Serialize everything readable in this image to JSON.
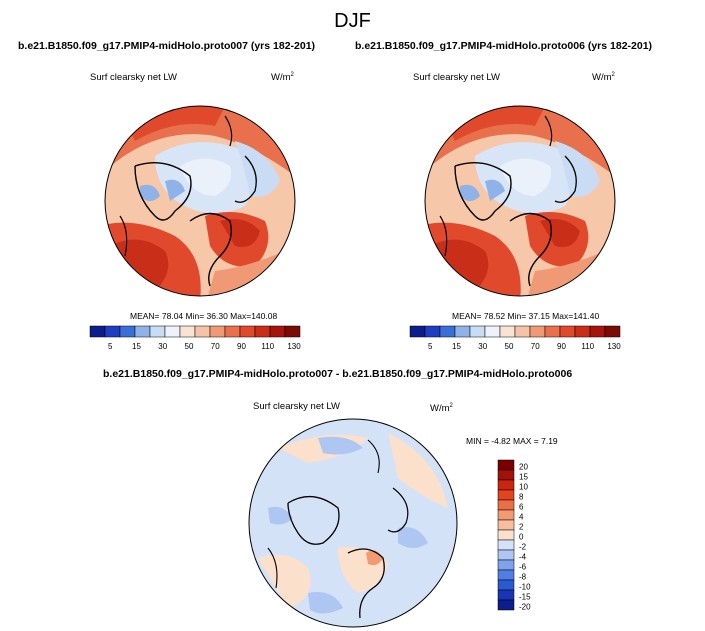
{
  "title": "DJF",
  "colors": {
    "lw": [
      "#0b1e8c",
      "#1d3fc4",
      "#3a6fd8",
      "#8fb3e8",
      "#c9dcf3",
      "#eef3fb",
      "#fbe3d3",
      "#f6c3a6",
      "#f09a75",
      "#e8704c",
      "#e0492b",
      "#c92e19",
      "#a8140c",
      "#7c0a05"
    ],
    "diff": [
      "#0b1e8c",
      "#1735b5",
      "#2a5ad2",
      "#4f7fe0",
      "#7fa3ea",
      "#aec6f2",
      "#d4e2f8",
      "#fbe0cc",
      "#f7bf9f",
      "#f29a72",
      "#eb6f45",
      "#e3441f",
      "#c9250f",
      "#a1120a",
      "#7a0000"
    ]
  },
  "panels": [
    {
      "run_title": "b.e21.B1850.f09_g17.PMIP4-midHolo.proto007 (yrs 182-201)",
      "var_label": "Surf clearsky net LW",
      "units": "W/m",
      "units_exp": "2",
      "stats": "MEAN= 78.04  Min= 36.30  Max=140.08",
      "colorbar_labels": [
        "5",
        "15",
        "30",
        "50",
        "70",
        "90",
        "110",
        "130"
      ]
    },
    {
      "run_title": "b.e21.B1850.f09_g17.PMIP4-midHolo.proto006 (yrs 182-201)",
      "var_label": "Surf clearsky net LW",
      "units": "W/m",
      "units_exp": "2",
      "stats": "MEAN= 78.52  Min= 37.15  Max=141.40",
      "colorbar_labels": [
        "5",
        "15",
        "30",
        "50",
        "70",
        "90",
        "110",
        "130"
      ]
    }
  ],
  "diff_panel": {
    "title": "b.e21.B1850.f09_g17.PMIP4-midHolo.proto007 - b.e21.B1850.f09_g17.PMIP4-midHolo.proto006",
    "var_label": "Surf clearsky net LW",
    "units": "W/m",
    "units_exp": "2",
    "stats": "MIN =  -4.82 MAX =   7.19",
    "colorbar_labels": [
      "20",
      "15",
      "10",
      "8",
      "6",
      "4",
      "2",
      "0",
      "-2",
      "-4",
      "-6",
      "-8",
      "-10",
      "-15",
      "-20"
    ]
  },
  "chart_data": [
    {
      "type": "heatmap",
      "projection": "north polar stereographic",
      "title": "b.e21.B1850.f09_g17.PMIP4-midHolo.proto007 (yrs 182-201)",
      "variable": "Surf clearsky net LW",
      "units": "W/m2",
      "mean": 78.04,
      "min": 36.3,
      "max": 140.08,
      "colorbar_ticks": [
        5,
        15,
        30,
        50,
        70,
        90,
        110,
        130
      ]
    },
    {
      "type": "heatmap",
      "projection": "north polar stereographic",
      "title": "b.e21.B1850.f09_g17.PMIP4-midHolo.proto006 (yrs 182-201)",
      "variable": "Surf clearsky net LW",
      "units": "W/m2",
      "mean": 78.52,
      "min": 37.15,
      "max": 141.4,
      "colorbar_ticks": [
        5,
        15,
        30,
        50,
        70,
        90,
        110,
        130
      ]
    },
    {
      "type": "heatmap",
      "projection": "north polar stereographic",
      "title": "b.e21.B1850.f09_g17.PMIP4-midHolo.proto007 - b.e21.B1850.f09_g17.PMIP4-midHolo.proto006",
      "variable": "Surf clearsky net LW",
      "units": "W/m2",
      "min": -4.82,
      "max": 7.19,
      "colorbar_ticks": [
        -20,
        -15,
        -10,
        -8,
        -6,
        -4,
        -2,
        0,
        2,
        4,
        6,
        8,
        10,
        15,
        20
      ]
    }
  ]
}
